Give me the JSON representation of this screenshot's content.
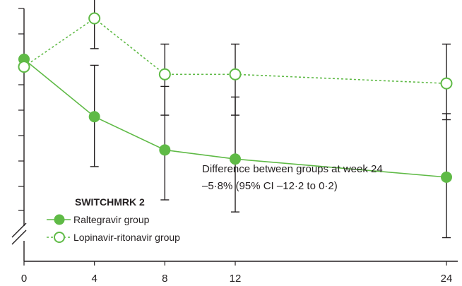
{
  "chart_data": {
    "type": "line",
    "title": "",
    "xlabel": "",
    "ylabel": "",
    "x": [
      0,
      4,
      8,
      12,
      24
    ],
    "x_tick_labels": [
      "0",
      "4",
      "8",
      "12",
      "24"
    ],
    "x_range": [
      0,
      24
    ],
    "y_axis_broken": true,
    "y_tick_labels_visible": false,
    "grid": false,
    "legend_placement": "bottom-left",
    "legend_title": "SWITCHMRK 2",
    "annotation": {
      "line1": "Difference between groups at week 24",
      "line2": "–5·8% (95% CI –12·2 to 0·2)"
    },
    "series": [
      {
        "name": "Raltegravir group",
        "color": "#5fba46",
        "marker": "filled-circle",
        "line_style": "solid",
        "values": [
          1.0,
          0.62,
          0.4,
          0.34,
          0.22
        ],
        "err_low": [
          null,
          0.33,
          0.33,
          0.35,
          0.4
        ],
        "err_high": [
          null,
          0.34,
          0.42,
          0.41,
          0.42
        ]
      },
      {
        "name": "Lopinavir-ritonavir group",
        "color": "#5fba46",
        "marker": "open-circle",
        "line_style": "dotted",
        "values": [
          0.95,
          1.27,
          0.9,
          0.9,
          0.84
        ],
        "err_low": [
          null,
          0.2,
          0.27,
          0.27,
          0.24
        ],
        "err_high": [
          null,
          0.13,
          0.2,
          0.2,
          0.26
        ]
      }
    ]
  }
}
